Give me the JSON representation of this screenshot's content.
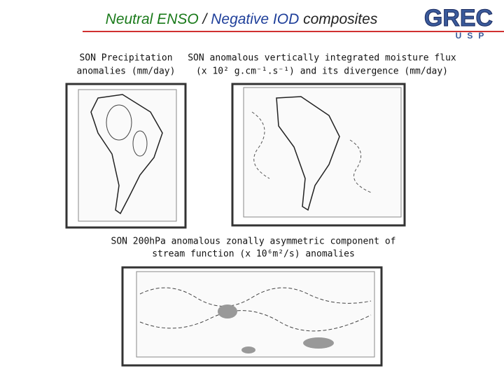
{
  "header": {
    "title_parts": [
      "Neutral ENSO",
      " / ",
      "Negative IOD",
      " composites"
    ]
  },
  "logo": {
    "text": "GREC",
    "subtext": "USP"
  },
  "panels": [
    {
      "caption": [
        "SON Precipitation",
        "anomalies (mm/day)"
      ]
    },
    {
      "caption": [
        "SON anomalous vertically integrated moisture flux",
        "(x 10² g.cm⁻¹.s⁻¹) and its divergence (mm/day)"
      ]
    },
    {
      "caption": [
        "SON 200hPa anomalous zonally asymmetric component of",
        "stream function (x 10⁶m²/s) anomalies"
      ]
    }
  ]
}
